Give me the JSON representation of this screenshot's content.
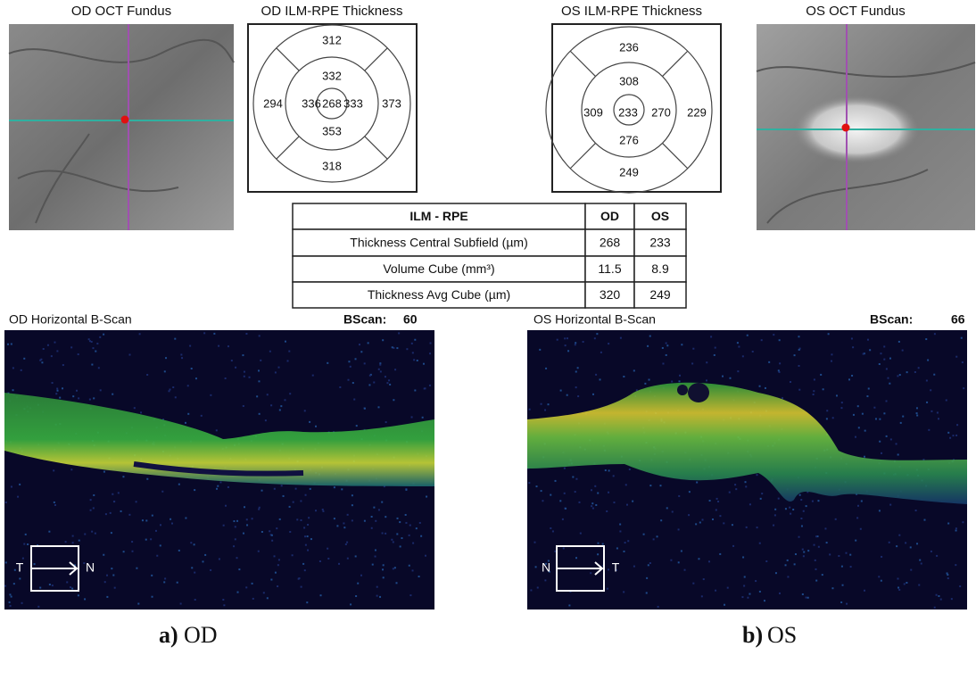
{
  "od_fundus": {
    "title": "OD OCT Fundus"
  },
  "od_thickness": {
    "title": "OD ILM-RPE Thickness",
    "superior_outer": 312,
    "superior_inner": 332,
    "temporal_outer": 294,
    "temporal_inner": 336,
    "central": 268,
    "nasal_inner": 333,
    "nasal_outer": 373,
    "inferior_inner": 353,
    "inferior_outer": 318
  },
  "os_thickness": {
    "title": "OS ILM-RPE Thickness",
    "superior_outer": 236,
    "superior_inner": 308,
    "nasal_inner": 309,
    "central": 233,
    "temporal_inner": 270,
    "temporal_outer": 229,
    "inferior_inner": 276,
    "inferior_outer": 249
  },
  "os_fundus": {
    "title": "OS OCT Fundus"
  },
  "table": {
    "header": [
      "ILM - RPE",
      "OD",
      "OS"
    ],
    "rows": [
      [
        "Thickness Central Subfield (µm)",
        268,
        233
      ],
      [
        "Volume Cube (mm³)",
        11.5,
        8.9
      ],
      [
        "Thickness Avg Cube (µm)",
        320,
        249
      ]
    ]
  },
  "od_bscan": {
    "title": "OD Horizontal B-Scan",
    "bscan_label": "BScan:",
    "bscan_number": 60,
    "left": "T",
    "right": "N"
  },
  "os_bscan": {
    "title": "OS Horizontal B-Scan",
    "bscan_label": "BScan:",
    "bscan_number": 66,
    "left": "N",
    "right": "T"
  },
  "captions": {
    "a": {
      "letter": "a)",
      "text": "OD"
    },
    "b": {
      "letter": "b)",
      "text": "OS"
    }
  }
}
